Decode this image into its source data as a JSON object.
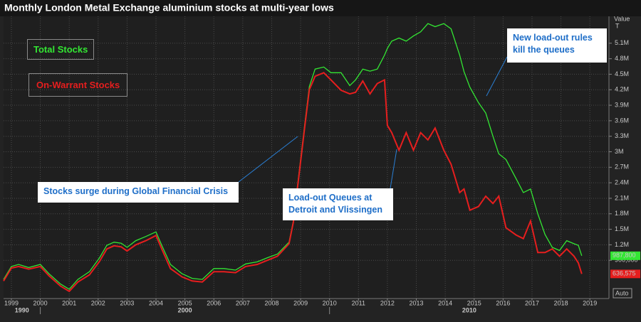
{
  "chart_data": {
    "type": "line",
    "title": "Monthly London Metal Exchange aluminium stocks at multi-year lows",
    "y_label": "Value",
    "y_unit": "T",
    "scale_button": "Auto",
    "x": [
      1998.73,
      1999.0,
      1999.25,
      1999.6,
      2000.0,
      2000.3,
      2000.7,
      2001.0,
      2001.3,
      2001.7,
      2002.05,
      2002.3,
      2002.55,
      2002.8,
      2003.0,
      2003.3,
      2003.65,
      2004.0,
      2004.2,
      2004.5,
      2004.9,
      2005.25,
      2005.6,
      2006.0,
      2006.35,
      2006.75,
      2007.1,
      2007.5,
      2007.85,
      2008.2,
      2008.6,
      2008.75,
      2008.95,
      2009.15,
      2009.3,
      2009.5,
      2009.8,
      2010.05,
      2010.4,
      2010.7,
      2010.9,
      2011.15,
      2011.4,
      2011.65,
      2011.9,
      2012.0,
      2012.15,
      2012.4,
      2012.65,
      2012.9,
      2013.15,
      2013.4,
      2013.65,
      2013.95,
      2014.2,
      2014.5,
      2014.65,
      2014.85,
      2015.15,
      2015.4,
      2015.65,
      2015.85,
      2016.1,
      2016.45,
      2016.7,
      2016.95,
      2017.2,
      2017.45,
      2017.7,
      2017.95,
      2018.2,
      2018.45,
      2018.6,
      2018.72
    ],
    "series": [
      {
        "name": "Total Stocks",
        "color": "#33e633",
        "last_label": "987,800",
        "values": [
          530000,
          780000,
          820000,
          760000,
          820000,
          640000,
          440000,
          340000,
          530000,
          680000,
          950000,
          1190000,
          1250000,
          1230000,
          1150000,
          1280000,
          1360000,
          1450000,
          1190000,
          820000,
          640000,
          550000,
          530000,
          740000,
          740000,
          710000,
          830000,
          870000,
          950000,
          1020000,
          1250000,
          1660000,
          2620000,
          3570000,
          4260000,
          4600000,
          4640000,
          4530000,
          4530000,
          4280000,
          4390000,
          4600000,
          4560000,
          4600000,
          4870000,
          5000000,
          5140000,
          5200000,
          5140000,
          5240000,
          5320000,
          5480000,
          5420000,
          5480000,
          5380000,
          4870000,
          4550000,
          4250000,
          3950000,
          3750000,
          3300000,
          2960000,
          2850000,
          2480000,
          2210000,
          2280000,
          1800000,
          1400000,
          1150000,
          1090000,
          1280000,
          1220000,
          1190000,
          987800
        ]
      },
      {
        "name": "On-Warrant Stocks",
        "color": "#e61e1e",
        "last_label": "636,575",
        "values": [
          500000,
          750000,
          780000,
          730000,
          780000,
          600000,
          400000,
          300000,
          480000,
          620000,
          880000,
          1120000,
          1180000,
          1160000,
          1080000,
          1200000,
          1280000,
          1380000,
          1120000,
          740000,
          580000,
          500000,
          480000,
          680000,
          680000,
          660000,
          780000,
          820000,
          900000,
          980000,
          1220000,
          1640000,
          2580000,
          3520000,
          4200000,
          4460000,
          4530000,
          4390000,
          4190000,
          4120000,
          4150000,
          4370000,
          4120000,
          4320000,
          4390000,
          3510000,
          3370000,
          3030000,
          3370000,
          3030000,
          3370000,
          3230000,
          3460000,
          3030000,
          2760000,
          2210000,
          2280000,
          1870000,
          1940000,
          2140000,
          2000000,
          2140000,
          1530000,
          1390000,
          1320000,
          1660000,
          1050000,
          1050000,
          1120000,
          980000,
          1120000,
          980000,
          850000,
          636575
        ]
      }
    ],
    "xlim": [
      1998.73,
      2019.66
    ],
    "xticks": [
      1999,
      2000,
      2001,
      2002,
      2003,
      2004,
      2005,
      2006,
      2007,
      2008,
      2009,
      2010,
      2011,
      2012,
      2013,
      2014,
      2015,
      2016,
      2017,
      2018,
      2019
    ],
    "decades": [
      1990,
      2000,
      2010
    ],
    "ylim": [
      160000,
      5620000
    ],
    "yticks": [
      {
        "value": 900000,
        "label": "900,000"
      },
      {
        "value": 1200000,
        "label": "1.2M"
      },
      {
        "value": 1500000,
        "label": "1.5M"
      },
      {
        "value": 1800000,
        "label": "1.8M"
      },
      {
        "value": 2100000,
        "label": "2.1M"
      },
      {
        "value": 2400000,
        "label": "2.4M"
      },
      {
        "value": 2700000,
        "label": "2.7M"
      },
      {
        "value": 3000000,
        "label": "3M"
      },
      {
        "value": 3300000,
        "label": "3.3M"
      },
      {
        "value": 3600000,
        "label": "3.6M"
      },
      {
        "value": 3900000,
        "label": "3.9M"
      },
      {
        "value": 4200000,
        "label": "4.2M"
      },
      {
        "value": 4500000,
        "label": "4.5M"
      },
      {
        "value": 4800000,
        "label": "4.8M"
      },
      {
        "value": 5100000,
        "label": "5.1M"
      }
    ],
    "grid": true,
    "annotations": [
      {
        "text": "Stocks surge during Global Financial Crisis"
      },
      {
        "text": "Load-out Queues at Detroit and Vlissingen"
      },
      {
        "text": "New load-out rules kill the queues"
      }
    ]
  }
}
